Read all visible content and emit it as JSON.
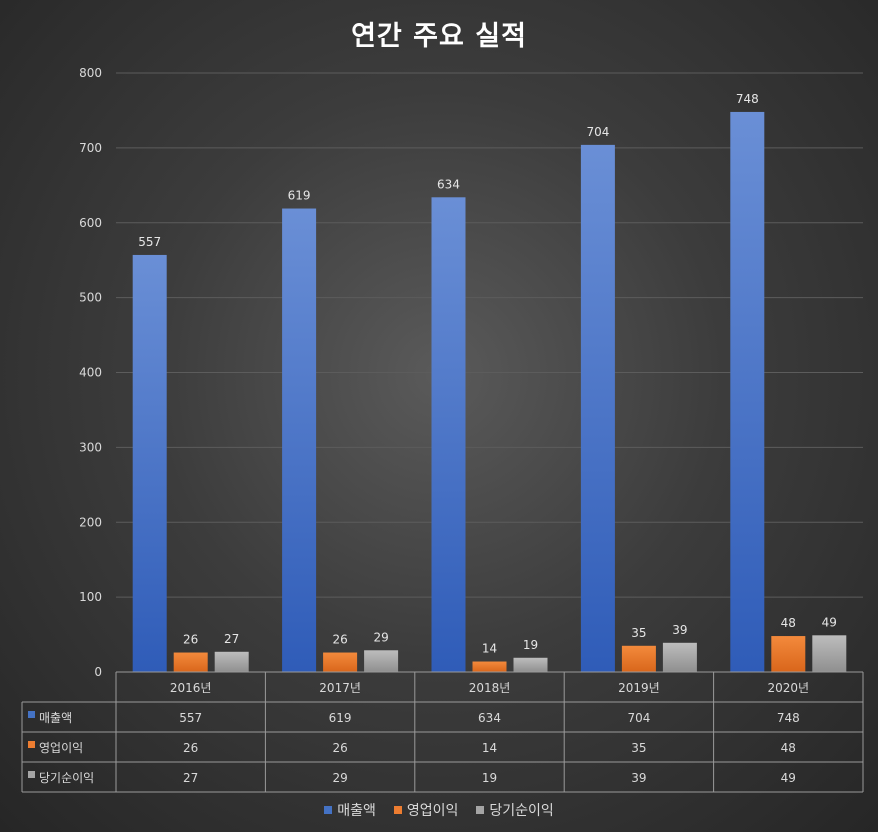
{
  "chart_data": {
    "type": "bar",
    "title": "연간 주요 실적",
    "categories": [
      "2016년",
      "2017년",
      "2018년",
      "2019년",
      "2020년"
    ],
    "series": [
      {
        "name": "매출액",
        "values": [
          557,
          619,
          634,
          704,
          748
        ],
        "color": "#4472C4"
      },
      {
        "name": "영업이익",
        "values": [
          26,
          26,
          14,
          35,
          48
        ],
        "color": "#ED7D31"
      },
      {
        "name": "당기순이익",
        "values": [
          27,
          29,
          19,
          39,
          49
        ],
        "color": "#A5A5A5"
      }
    ],
    "ylim": [
      0,
      800
    ],
    "yticks": [
      0,
      100,
      200,
      300,
      400,
      500,
      600,
      700,
      800
    ],
    "grid": true,
    "legend": "bottom",
    "data_table": true
  }
}
